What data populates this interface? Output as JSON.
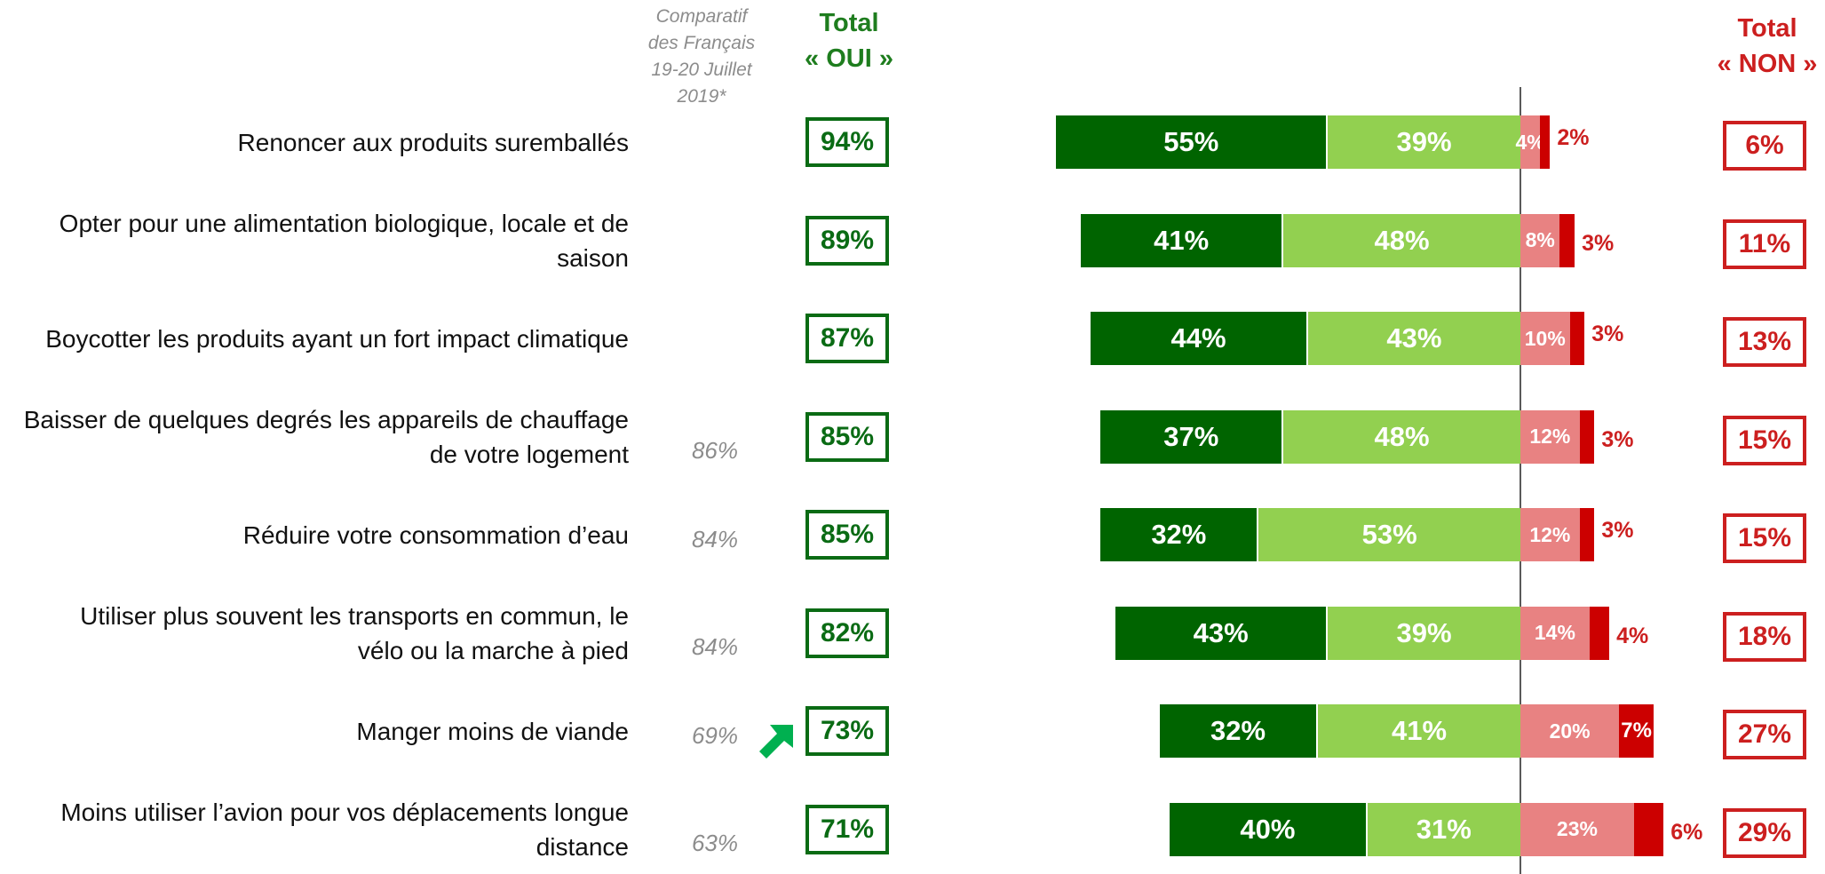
{
  "header": {
    "comparatif": [
      "Comparatif",
      "des Français",
      "19-20 Juillet",
      "2019*"
    ],
    "total_oui": [
      "Total",
      "« OUI »"
    ],
    "total_non": [
      "Total",
      "« NON »"
    ]
  },
  "colors": {
    "oui_dark": "#006400",
    "oui_light": "#92d050",
    "non_light": "#e88282",
    "non_dark": "#cc0000",
    "oui_total": "#0a6b14",
    "non_total": "#cc1f1f"
  },
  "icons": {
    "trend": "up-right-arrow-icon"
  },
  "chart_data": {
    "type": "bar",
    "orientation": "horizontal-diverging-stacked",
    "categories": [
      "Renoncer aux produits suremballés",
      "Opter pour une alimentation biologique, locale et de saison",
      "Boycotter les produits ayant un fort impact climatique",
      "Baisser de quelques degrés les appareils de chauffage de votre logement",
      "Réduire votre consommation d’eau",
      "Utiliser plus souvent les transports en commun, le vélo ou la marche à pied",
      "Manger moins de viande",
      "Moins utiliser l’avion pour vos déplacements longue distance"
    ],
    "label_lines": [
      [
        "Renoncer aux produits suremballés"
      ],
      [
        "Opter pour une alimentation biologique, locale et de",
        "saison"
      ],
      [
        "Boycotter les produits ayant un fort impact climatique"
      ],
      [
        "Baisser de quelques degrés les appareils de chauffage",
        "de votre logement"
      ],
      [
        "Réduire votre consommation d’eau"
      ],
      [
        "Utiliser plus souvent les transports en commun, le",
        "vélo ou la marche à pied"
      ],
      [
        "Manger moins de viande"
      ],
      [
        "Moins utiliser l’avion pour vos déplacements longue",
        "distance"
      ]
    ],
    "series": [
      {
        "values": [
          55,
          41,
          44,
          37,
          32,
          43,
          32,
          40
        ],
        "color": "#006400"
      },
      {
        "values": [
          39,
          48,
          43,
          48,
          53,
          39,
          41,
          31
        ],
        "color": "#92d050"
      },
      {
        "values": [
          4,
          8,
          10,
          12,
          12,
          14,
          20,
          23
        ],
        "color": "#e88282"
      },
      {
        "values": [
          2,
          3,
          3,
          3,
          3,
          4,
          7,
          6
        ],
        "color": "#cc0000"
      }
    ],
    "total_oui": [
      94,
      89,
      87,
      85,
      85,
      82,
      73,
      71
    ],
    "total_non": [
      6,
      11,
      13,
      15,
      15,
      18,
      27,
      29
    ],
    "comparatif": [
      null,
      null,
      null,
      86,
      84,
      84,
      69,
      63
    ],
    "trend_up_row": 6,
    "value_suffix": "%"
  }
}
